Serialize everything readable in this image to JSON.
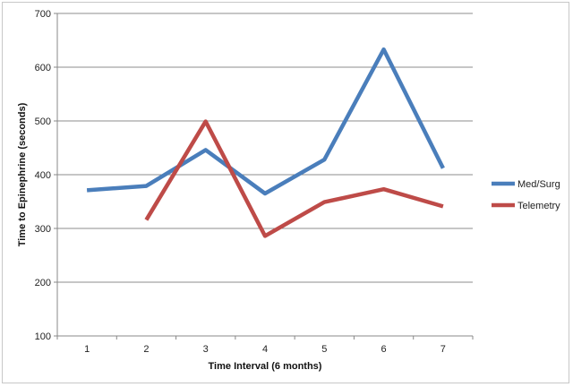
{
  "chart_data": {
    "type": "line",
    "xlabel": "Time Interval (6 months)",
    "ylabel": "Time to Epinephrine  (seconds)",
    "ylim": [
      100,
      700
    ],
    "yticks": [
      100,
      200,
      300,
      400,
      500,
      600,
      700
    ],
    "categories": [
      "1",
      "2",
      "3",
      "4",
      "5",
      "6",
      "7"
    ],
    "grid": true,
    "legend_position": "right",
    "series": [
      {
        "name": "Med/Surg",
        "color": "#4a7ebb",
        "values": [
          371,
          379,
          446,
          365,
          428,
          633,
          412
        ]
      },
      {
        "name": "Telemetry",
        "color": "#be4b48",
        "values": [
          null,
          316,
          499,
          286,
          349,
          373,
          341
        ]
      }
    ]
  }
}
